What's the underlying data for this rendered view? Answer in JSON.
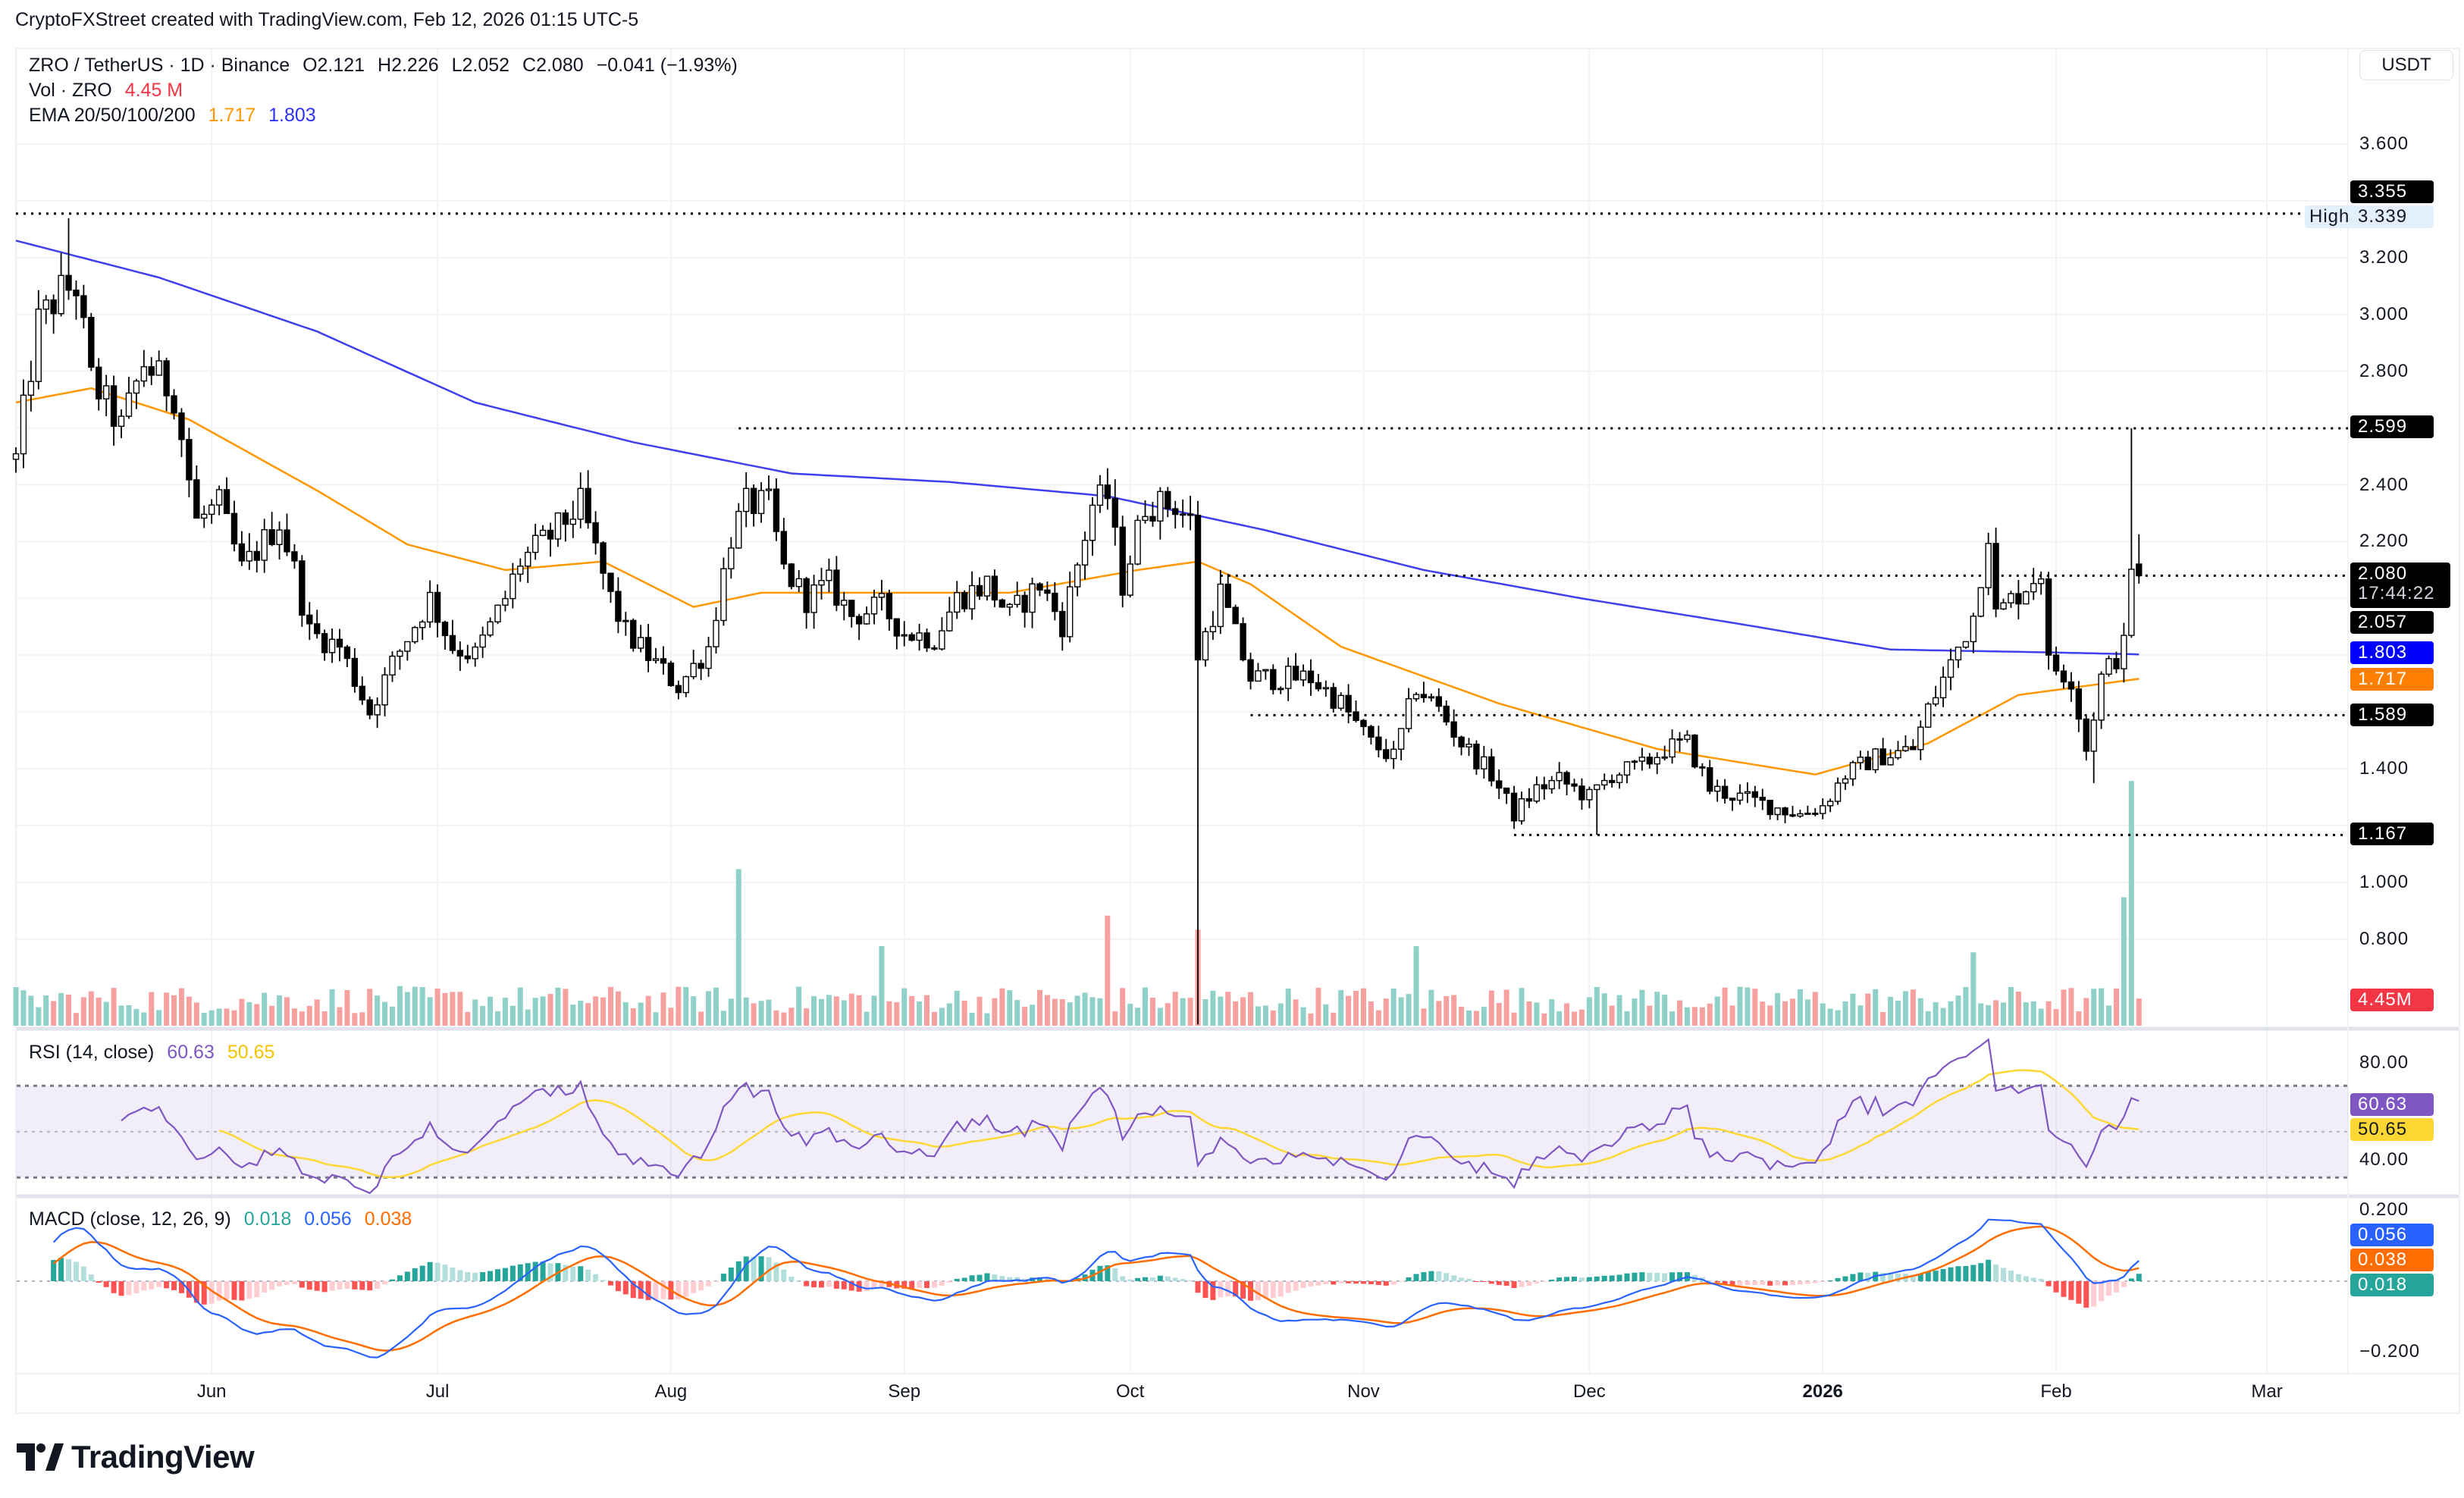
{
  "attribution": "CryptoFXStreet created with TradingView.com, Feb 12, 2026 01:15 UTC-5",
  "legend": {
    "symbol": "ZRO / TetherUS · 1D · Binance",
    "open": "O2.121",
    "high": "H2.226",
    "low": "L2.052",
    "close": "C2.080",
    "change": "−0.041 (−1.93%)",
    "vol_label": "Vol · ZRO",
    "vol_value": "4.45 M",
    "ema_label": "EMA 20/50/100/200",
    "ema_value_1": "1.717",
    "ema_value_2": "1.803"
  },
  "currency_button": "USDT",
  "price_badges": [
    {
      "text": "3.355",
      "color": "#000000"
    },
    {
      "text": "High",
      "value": "3.339",
      "color": "#e3effd"
    },
    {
      "text": "2.599",
      "color": "#000000"
    },
    {
      "text": "2.080",
      "countdown": "17:44:22",
      "color": "#000000"
    },
    {
      "text": "2.057",
      "color": "#000000"
    },
    {
      "text": "1.803",
      "color": "#0000ff"
    },
    {
      "text": "1.717",
      "color": "#ff7f00"
    },
    {
      "text": "1.589",
      "color": "#000000"
    },
    {
      "text": "1.167",
      "color": "#000000"
    },
    {
      "text": "4.45M",
      "color": "#f23645"
    }
  ],
  "rsi": {
    "label": "RSI (14, close)",
    "value": "60.63",
    "ma_value": "50.65",
    "ticks": [
      "80.00",
      "40.00"
    ],
    "color": "#7e57c2",
    "ma_color": "#fdd835"
  },
  "macd": {
    "label": "MACD (close, 12, 26, 9)",
    "hist_value": "0.018",
    "macd_value": "0.056",
    "signal_value": "0.038",
    "ticks": [
      "0.200",
      "−0.200"
    ],
    "macd_color": "#2962ff",
    "signal_color": "#ff6d00",
    "hist_color": "#26a69a"
  },
  "logo_text": "TradingView",
  "chart_data": {
    "type": "candlestick",
    "symbol": "ZRO/USDT",
    "interval": "1D",
    "ylim": [
      0.6,
      3.7
    ],
    "y_ticks": [
      "3.600",
      "3.200",
      "3.000",
      "2.800",
      "2.400",
      "2.200",
      "1.400",
      "1.000",
      "0.800"
    ],
    "x_tick_labels": [
      {
        "label": "Jun",
        "date": "2025-06-01"
      },
      {
        "label": "Jul",
        "date": "2025-07-01"
      },
      {
        "label": "Aug",
        "date": "2025-08-01"
      },
      {
        "label": "Sep",
        "date": "2025-09-01"
      },
      {
        "label": "Oct",
        "date": "2025-10-01"
      },
      {
        "label": "Nov",
        "date": "2025-11-01"
      },
      {
        "label": "Dec",
        "date": "2025-12-01"
      },
      {
        "label": "2026",
        "date": "2026-01-01"
      },
      {
        "label": "Feb",
        "date": "2026-02-01"
      },
      {
        "label": "Mar",
        "date": "2026-03-01"
      }
    ],
    "close_keypoints": [
      [
        "2025-05-06",
        2.49
      ],
      [
        "2025-05-09",
        2.97
      ],
      [
        "2025-05-12",
        3.08
      ],
      [
        "2025-05-14",
        3.1
      ],
      [
        "2025-05-16",
        2.77
      ],
      [
        "2025-05-20",
        2.6
      ],
      [
        "2025-05-23",
        2.83
      ],
      [
        "2025-05-27",
        2.72
      ],
      [
        "2025-05-30",
        2.27
      ],
      [
        "2025-06-02",
        2.33
      ],
      [
        "2025-06-05",
        2.1
      ],
      [
        "2025-06-10",
        2.27
      ],
      [
        "2025-06-12",
        2.1
      ],
      [
        "2025-06-14",
        1.88
      ],
      [
        "2025-06-18",
        1.83
      ],
      [
        "2025-06-22",
        1.6
      ],
      [
        "2025-06-25",
        1.77
      ],
      [
        "2025-06-30",
        2.0
      ],
      [
        "2025-07-03",
        1.83
      ],
      [
        "2025-07-06",
        1.8
      ],
      [
        "2025-07-10",
        2.0
      ],
      [
        "2025-07-12",
        2.13
      ],
      [
        "2025-07-16",
        2.22
      ],
      [
        "2025-07-20",
        2.33
      ],
      [
        "2025-07-24",
        2.0
      ],
      [
        "2025-07-26",
        1.88
      ],
      [
        "2025-07-30",
        1.77
      ],
      [
        "2025-08-02",
        1.69
      ],
      [
        "2025-08-06",
        1.83
      ],
      [
        "2025-08-09",
        2.22
      ],
      [
        "2025-08-11",
        2.33
      ],
      [
        "2025-08-14",
        2.33
      ],
      [
        "2025-08-16",
        2.1
      ],
      [
        "2025-08-19",
        2.0
      ],
      [
        "2025-08-22",
        2.05
      ],
      [
        "2025-08-25",
        1.94
      ],
      [
        "2025-08-29",
        1.97
      ],
      [
        "2025-09-01",
        1.88
      ],
      [
        "2025-09-05",
        1.86
      ],
      [
        "2025-09-08",
        2.0
      ],
      [
        "2025-09-12",
        2.05
      ],
      [
        "2025-09-15",
        1.94
      ],
      [
        "2025-09-19",
        2.05
      ],
      [
        "2025-09-22",
        1.91
      ],
      [
        "2025-09-26",
        2.33
      ],
      [
        "2025-09-28",
        2.36
      ],
      [
        "2025-09-30",
        2.05
      ],
      [
        "2025-10-03",
        2.33
      ],
      [
        "2025-10-07",
        2.33
      ],
      [
        "2025-10-09",
        2.27
      ],
      [
        "2025-10-10",
        1.8
      ],
      [
        "2025-10-13",
        2.02
      ],
      [
        "2025-10-17",
        1.72
      ],
      [
        "2025-10-21",
        1.72
      ],
      [
        "2025-10-25",
        1.72
      ],
      [
        "2025-10-29",
        1.63
      ],
      [
        "2025-11-02",
        1.49
      ],
      [
        "2025-11-05",
        1.44
      ],
      [
        "2025-11-08",
        1.69
      ],
      [
        "2025-11-11",
        1.61
      ],
      [
        "2025-11-14",
        1.49
      ],
      [
        "2025-11-18",
        1.38
      ],
      [
        "2025-11-21",
        1.24
      ],
      [
        "2025-11-24",
        1.33
      ],
      [
        "2025-11-27",
        1.36
      ],
      [
        "2025-12-01",
        1.3
      ],
      [
        "2025-12-04",
        1.38
      ],
      [
        "2025-12-08",
        1.41
      ],
      [
        "2025-12-11",
        1.47
      ],
      [
        "2025-12-14",
        1.49
      ],
      [
        "2025-12-17",
        1.33
      ],
      [
        "2025-12-21",
        1.3
      ],
      [
        "2025-12-25",
        1.27
      ],
      [
        "2025-12-29",
        1.24
      ],
      [
        "2026-01-01",
        1.27
      ],
      [
        "2026-01-04",
        1.38
      ],
      [
        "2026-01-08",
        1.44
      ],
      [
        "2026-01-13",
        1.47
      ],
      [
        "2026-01-15",
        1.61
      ],
      [
        "2026-01-18",
        1.77
      ],
      [
        "2026-01-21",
        1.94
      ],
      [
        "2026-01-23",
        2.24
      ],
      [
        "2026-01-24",
        1.94
      ],
      [
        "2026-01-27",
        2.02
      ],
      [
        "2026-01-30",
        2.1
      ],
      [
        "2026-01-31",
        1.77
      ],
      [
        "2026-02-03",
        1.72
      ],
      [
        "2026-02-05",
        1.47
      ],
      [
        "2026-02-07",
        1.72
      ],
      [
        "2026-02-10",
        1.83
      ],
      [
        "2026-02-11",
        2.121
      ]
    ],
    "last_candle": {
      "date": "2026-02-12",
      "open": 2.121,
      "high": 2.226,
      "low": 2.052,
      "close": 2.08
    },
    "wick_extremes": [
      {
        "date": "2025-05-13",
        "high": 3.339
      },
      {
        "date": "2025-10-10",
        "low": 0.5
      },
      {
        "date": "2026-02-11",
        "high": 2.599
      },
      {
        "date": "2026-02-06",
        "low": 1.35
      },
      {
        "date": "2025-12-02",
        "low": 1.167
      }
    ],
    "ema50": [
      [
        "2025-05-06",
        2.69
      ],
      [
        "2025-05-16",
        2.74
      ],
      [
        "2025-05-29",
        2.63
      ],
      [
        "2025-06-15",
        2.38
      ],
      [
        "2025-06-27",
        2.19
      ],
      [
        "2025-07-10",
        2.1
      ],
      [
        "2025-07-23",
        2.13
      ],
      [
        "2025-08-04",
        1.97
      ],
      [
        "2025-08-13",
        2.02
      ],
      [
        "2025-08-29",
        2.02
      ],
      [
        "2025-09-15",
        2.02
      ],
      [
        "2025-10-02",
        2.1
      ],
      [
        "2025-10-10",
        2.13
      ],
      [
        "2025-10-17",
        2.05
      ],
      [
        "2025-10-29",
        1.83
      ],
      [
        "2025-11-19",
        1.63
      ],
      [
        "2025-12-10",
        1.47
      ],
      [
        "2025-12-31",
        1.38
      ],
      [
        "2026-01-15",
        1.49
      ],
      [
        "2026-01-27",
        1.66
      ],
      [
        "2026-02-12",
        1.717
      ]
    ],
    "ema200": [
      [
        "2025-05-06",
        3.26
      ],
      [
        "2025-05-25",
        3.13
      ],
      [
        "2025-06-15",
        2.94
      ],
      [
        "2025-07-06",
        2.69
      ],
      [
        "2025-07-27",
        2.55
      ],
      [
        "2025-08-17",
        2.44
      ],
      [
        "2025-09-07",
        2.41
      ],
      [
        "2025-09-28",
        2.36
      ],
      [
        "2025-10-19",
        2.24
      ],
      [
        "2025-11-09",
        2.1
      ],
      [
        "2025-11-30",
        2.0
      ],
      [
        "2025-12-21",
        1.91
      ],
      [
        "2026-01-10",
        1.82
      ],
      [
        "2026-01-31",
        1.81
      ],
      [
        "2026-02-12",
        1.803
      ]
    ],
    "volume_spikes_millions": [
      [
        "2025-08-10",
        25.6
      ],
      [
        "2025-08-29",
        13
      ],
      [
        "2025-09-28",
        18
      ],
      [
        "2025-10-10",
        15.7
      ],
      [
        "2025-11-08",
        13
      ],
      [
        "2026-01-21",
        12
      ],
      [
        "2026-02-10",
        21
      ],
      [
        "2026-02-11",
        40
      ],
      [
        "2026-02-12",
        4.45
      ]
    ],
    "horizontal_levels": [
      {
        "value": 3.355,
        "from": "2025-05-06"
      },
      {
        "value": 2.599,
        "from": "2025-08-10"
      },
      {
        "value": 2.08,
        "from": "2025-10-13"
      },
      {
        "value": 1.589,
        "from": "2025-10-17"
      },
      {
        "value": 1.167,
        "from": "2025-11-21"
      }
    ],
    "colors": {
      "up_body": "#ffffff",
      "down_body": "#000000",
      "wick": "#000000",
      "ema50": "#ff9800",
      "ema200": "#3f3ff0",
      "vol_up": "#8fd0c8",
      "vol_down": "#f7a0a0"
    }
  }
}
